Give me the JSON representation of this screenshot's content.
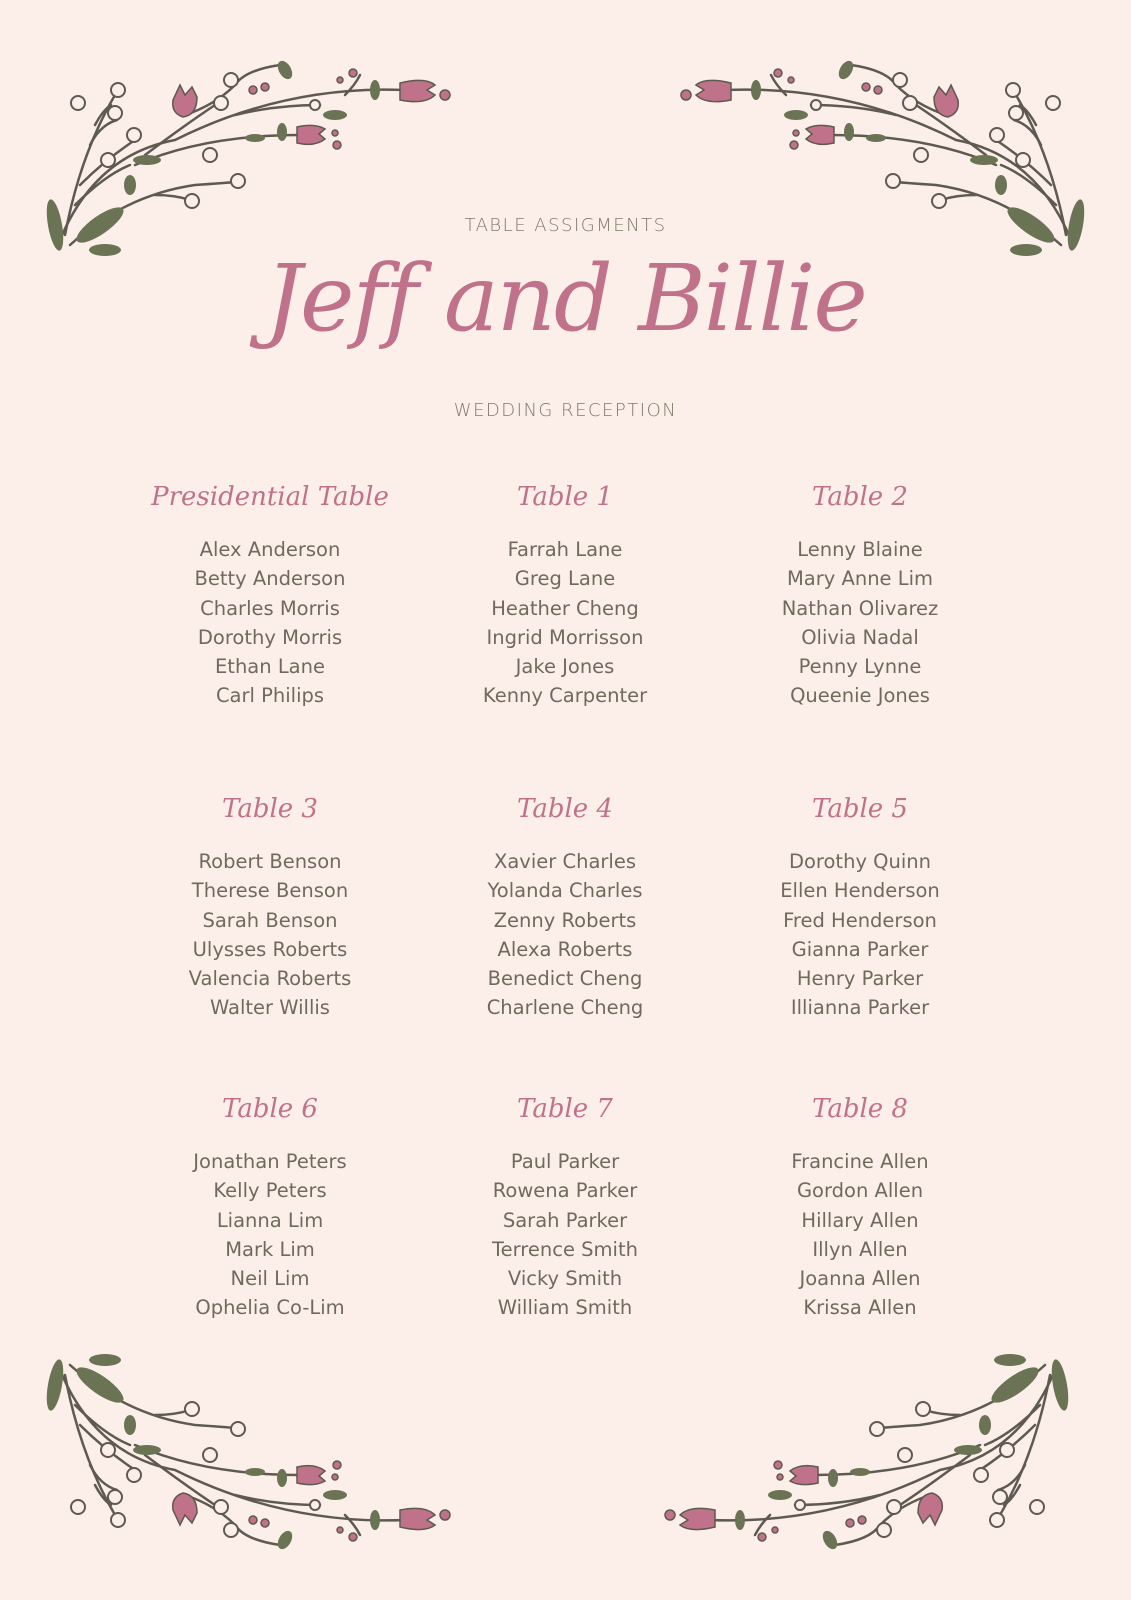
{
  "header": {
    "subtitle_top": "TABLE ASSIGMENTS",
    "couple": "Jeff and Billie",
    "subtitle_bottom": "WEDDING RECEPTION"
  },
  "colors": {
    "background": "#fcefe9",
    "accent": "#c0728a",
    "text": "#6f6b5c",
    "leaf": "#6b7355"
  },
  "tables": [
    {
      "name": "Presidential Table",
      "guests": [
        "Alex Anderson",
        "Betty Anderson",
        "Charles Morris",
        "Dorothy Morris",
        "Ethan Lane",
        "Carl Philips"
      ]
    },
    {
      "name": "Table 1",
      "guests": [
        "Farrah Lane",
        "Greg Lane",
        "Heather Cheng",
        "Ingrid Morrisson",
        "Jake Jones",
        "Kenny Carpenter"
      ]
    },
    {
      "name": "Table 2",
      "guests": [
        "Lenny Blaine",
        "Mary Anne Lim",
        "Nathan Olivarez",
        "Olivia Nadal",
        "Penny Lynne",
        "Queenie Jones"
      ]
    },
    {
      "name": "Table 3",
      "guests": [
        "Robert Benson",
        "Therese Benson",
        "Sarah Benson",
        "Ulysses Roberts",
        "Valencia Roberts",
        "Walter Willis"
      ]
    },
    {
      "name": "Table 4",
      "guests": [
        "Xavier Charles",
        "Yolanda Charles",
        "Zenny Roberts",
        "Alexa Roberts",
        "Benedict Cheng",
        "Charlene Cheng"
      ]
    },
    {
      "name": "Table 5",
      "guests": [
        "Dorothy Quinn",
        "Ellen Henderson",
        "Fred Henderson",
        "Gianna Parker",
        "Henry Parker",
        "Illianna Parker"
      ]
    },
    {
      "name": "Table 6",
      "guests": [
        "Jonathan Peters",
        "Kelly Peters",
        "Lianna Lim",
        "Mark Lim",
        "Neil Lim",
        "Ophelia Co-Lim"
      ]
    },
    {
      "name": "Table 7",
      "guests": [
        "Paul Parker",
        "Rowena Parker",
        "Sarah Parker",
        "Terrence Smith",
        "Vicky Smith",
        "William Smith"
      ]
    },
    {
      "name": "Table 8",
      "guests": [
        "Francine Allen",
        "Gordon Allen",
        "Hillary Allen",
        "Illyn Allen",
        "Joanna Allen",
        "Krissa Allen"
      ]
    }
  ]
}
